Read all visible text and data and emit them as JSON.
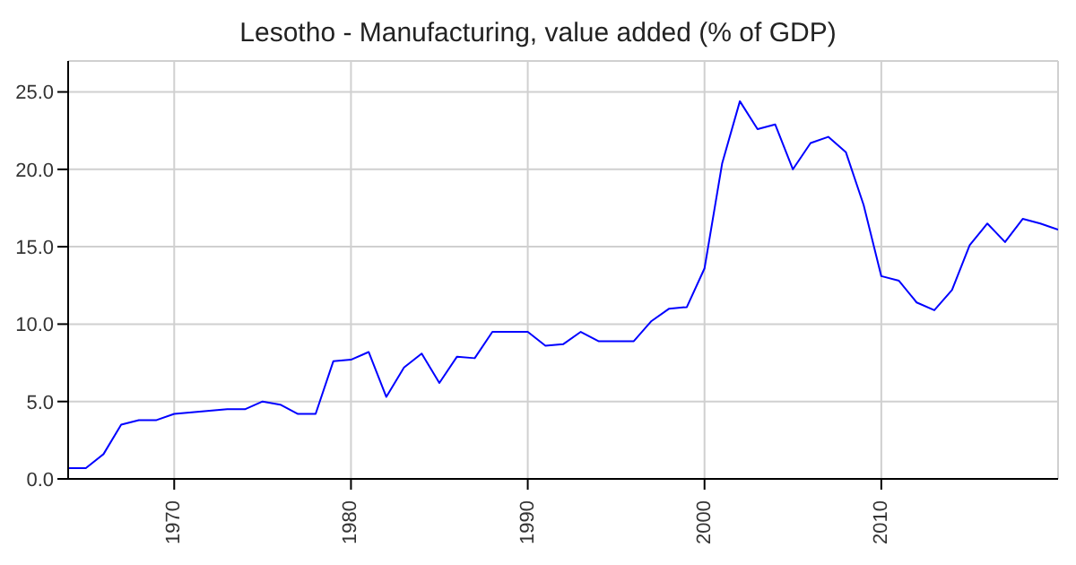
{
  "chart_data": {
    "type": "line",
    "title": "Lesotho - Manufacturing, value added (% of GDP)",
    "x": [
      1964,
      1965,
      1966,
      1967,
      1968,
      1969,
      1970,
      1971,
      1972,
      1973,
      1974,
      1975,
      1976,
      1977,
      1978,
      1979,
      1980,
      1981,
      1982,
      1983,
      1984,
      1985,
      1986,
      1987,
      1988,
      1989,
      1990,
      1991,
      1992,
      1993,
      1994,
      1995,
      1996,
      1997,
      1998,
      1999,
      2000,
      2001,
      2002,
      2003,
      2004,
      2005,
      2006,
      2007,
      2008,
      2009,
      2010,
      2011,
      2012,
      2013,
      2014,
      2015,
      2016,
      2017,
      2018,
      2019,
      2020
    ],
    "series": [
      {
        "color": "#0000ff",
        "values": [
          0.7,
          0.7,
          1.6,
          3.5,
          3.8,
          3.8,
          4.2,
          4.3,
          4.4,
          4.5,
          4.5,
          5.0,
          4.8,
          4.2,
          4.2,
          7.6,
          7.7,
          8.2,
          5.3,
          7.2,
          8.1,
          6.2,
          7.9,
          7.8,
          9.5,
          9.5,
          9.5,
          8.6,
          8.7,
          9.5,
          8.9,
          8.9,
          8.9,
          10.2,
          11.0,
          11.1,
          13.6,
          20.4,
          24.4,
          22.6,
          22.9,
          20.0,
          21.7,
          22.1,
          21.1,
          17.7,
          13.1,
          12.8,
          11.4,
          10.9,
          12.2,
          15.1,
          16.5,
          15.3,
          16.8,
          16.5,
          16.1
        ]
      }
    ],
    "xlim": [
      1964,
      2020
    ],
    "xticks": [
      1970,
      1980,
      1990,
      2000,
      2010
    ],
    "ylim": [
      0,
      27
    ],
    "yticks": [
      {
        "value": 0,
        "label": "0.0"
      },
      {
        "value": 5,
        "label": "5.0"
      },
      {
        "value": 10,
        "label": "10.0"
      },
      {
        "value": 15,
        "label": "15.0"
      },
      {
        "value": 20,
        "label": "20.0"
      },
      {
        "value": 25,
        "label": "25.0"
      }
    ],
    "grid": true,
    "marker": "none",
    "line_style": "solid"
  }
}
